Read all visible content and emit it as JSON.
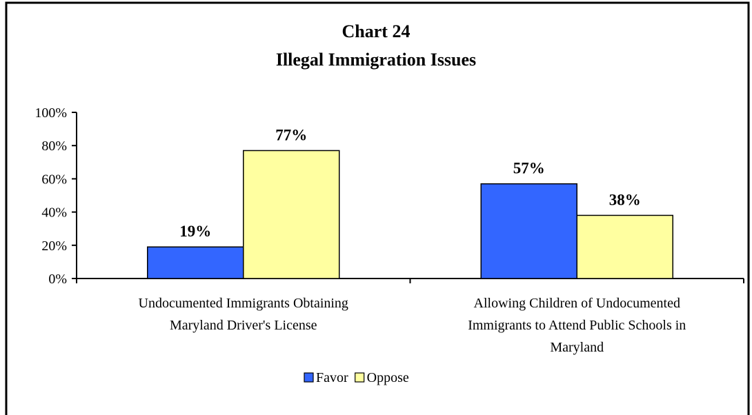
{
  "chart_data": {
    "type": "bar",
    "title": "Chart 24",
    "subtitle": "Illegal Immigration Issues",
    "categories": [
      [
        "Undocumented Immigrants Obtaining",
        "Maryland Driver's License"
      ],
      [
        "Allowing Children of Undocumented",
        "Immigrants to Attend Public Schools in",
        "Maryland"
      ]
    ],
    "series": [
      {
        "name": "Favor",
        "values": [
          19,
          57
        ],
        "labels": [
          "19%",
          "57%"
        ],
        "color": "#3366ff"
      },
      {
        "name": "Oppose",
        "values": [
          77,
          38
        ],
        "labels": [
          "77%",
          "38%"
        ],
        "color": "#ffffa0"
      }
    ],
    "y_ticks": [
      0,
      20,
      40,
      60,
      80,
      100
    ],
    "y_tick_labels": [
      "0%",
      "20%",
      "40%",
      "60%",
      "80%",
      "100%"
    ],
    "ylim": [
      0,
      100
    ],
    "grid": false,
    "legend_position": "bottom"
  }
}
